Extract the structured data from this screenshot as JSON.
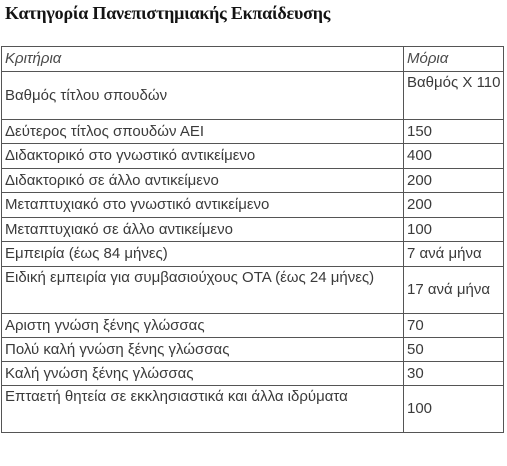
{
  "title": "Κατηγορία Πανεπιστημιακής Εκπαίδευσης",
  "table": {
    "headers": [
      "Κριτήρια",
      "Μόρια"
    ],
    "rows": [
      [
        "Βαθμός τίτλου σπουδών",
        "Βαθμός Χ 110"
      ],
      [
        "Δεύτερος τίτλος σπουδών ΑΕΙ",
        "150"
      ],
      [
        "Διδακτορικό στο γνωστικό αντικείμενο",
        "400"
      ],
      [
        "Διδακτορικό σε άλλο αντικείμενο",
        "200"
      ],
      [
        "Μεταπτυχιακό στο γνωστικό αντικείμενο",
        "200"
      ],
      [
        "Μεταπτυχιακό σε άλλο αντικείμενο",
        "100"
      ],
      [
        "Εμπειρία (έως 84 μήνες)",
        "7 ανά μήνα"
      ],
      [
        "Ειδική εμπειρία για συμβασιούχους ΟΤΑ (έως 24 μήνες)",
        "17 ανά μήνα"
      ],
      [
        "Αριστη γνώση ξένης γλώσσας",
        "70"
      ],
      [
        "Πολύ καλή γνώση ξένης γλώσσας",
        "50"
      ],
      [
        "Καλή γνώση ξένης γλώσσας",
        "30"
      ],
      [
        "Επταετή θητεία σε εκκλησιαστικά και άλλα ιδρύματα",
        "100"
      ]
    ]
  }
}
